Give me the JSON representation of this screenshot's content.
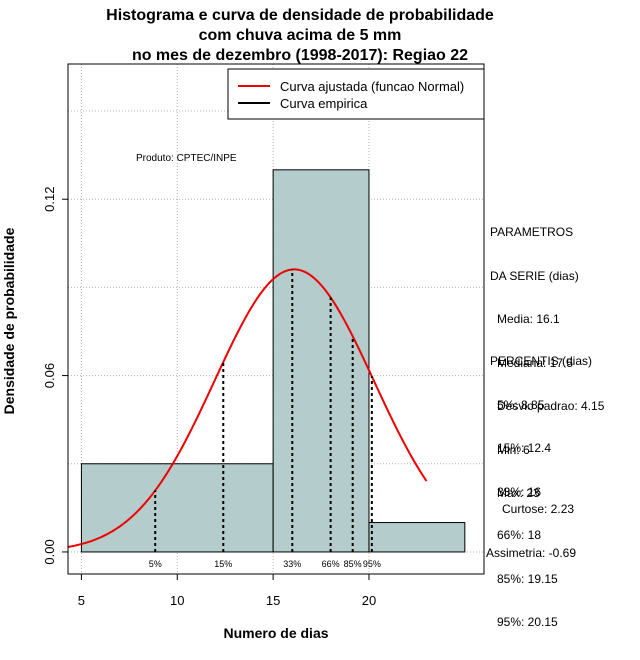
{
  "title_lines": [
    "Histograma e curva de densidade de probabilidade",
    "com chuva acima de 5 mm",
    "no mes de dezembro (1998-2017): Regiao 22"
  ],
  "credit": "Produto: CPTEC/INPE",
  "legend": {
    "fitted": "Curva ajustada (funcao Normal)",
    "empirical": "Curva empirica",
    "fitted_color": "#ee0000",
    "empirical_color": "#000000"
  },
  "parametros": {
    "heading": [
      "PARAMETROS",
      "DA SERIE (dias)"
    ],
    "items": [
      "Media: 16.1",
      "Mediana: 17.5",
      "Desvio padrao: 4.15",
      "Min: 6",
      "Max: 23"
    ]
  },
  "percentis": {
    "heading": "PERCENTIS (dias)",
    "items": [
      "5%: 8.85",
      "15%: 12.4",
      "33%: 16",
      "66%: 18",
      "85%: 19.15",
      "95%: 20.15"
    ]
  },
  "shape": [
    "Curtose: 2.23",
    "Assimetria: -0.69"
  ],
  "colors": {
    "bar_fill": "#b4cccc",
    "grid": "#b0b0b0"
  },
  "chart_data": {
    "type": "bar",
    "xlabel": "Numero de dias",
    "ylabel": "Densidade de probabilidade",
    "xlim": [
      4.3,
      26
    ],
    "ylim": [
      -0.0075,
      0.166
    ],
    "x_ticks": [
      5,
      10,
      15,
      20
    ],
    "y_ticks": [
      0.0,
      0.06,
      0.12
    ],
    "y_tick_labels": [
      "0.00",
      "0.06",
      "0.12"
    ],
    "grid": true,
    "legend_position": "top-right",
    "histogram": {
      "bins": [
        {
          "from": 5,
          "to": 15,
          "density": 0.03
        },
        {
          "from": 15,
          "to": 20,
          "density": 0.13
        },
        {
          "from": 20,
          "to": 25,
          "density": 0.01
        }
      ]
    },
    "fitted_normal": {
      "name": "Curva ajustada (funcao Normal)",
      "mean": 16.1,
      "sd": 4.15,
      "x_range": [
        4.3,
        23
      ]
    },
    "percentiles": [
      {
        "label": "5%",
        "x": 8.85
      },
      {
        "label": "15%",
        "x": 12.4
      },
      {
        "label": "33%",
        "x": 16
      },
      {
        "label": "66%",
        "x": 18
      },
      {
        "label": "85%",
        "x": 19.15
      },
      {
        "label": "95%",
        "x": 20.15
      }
    ]
  }
}
